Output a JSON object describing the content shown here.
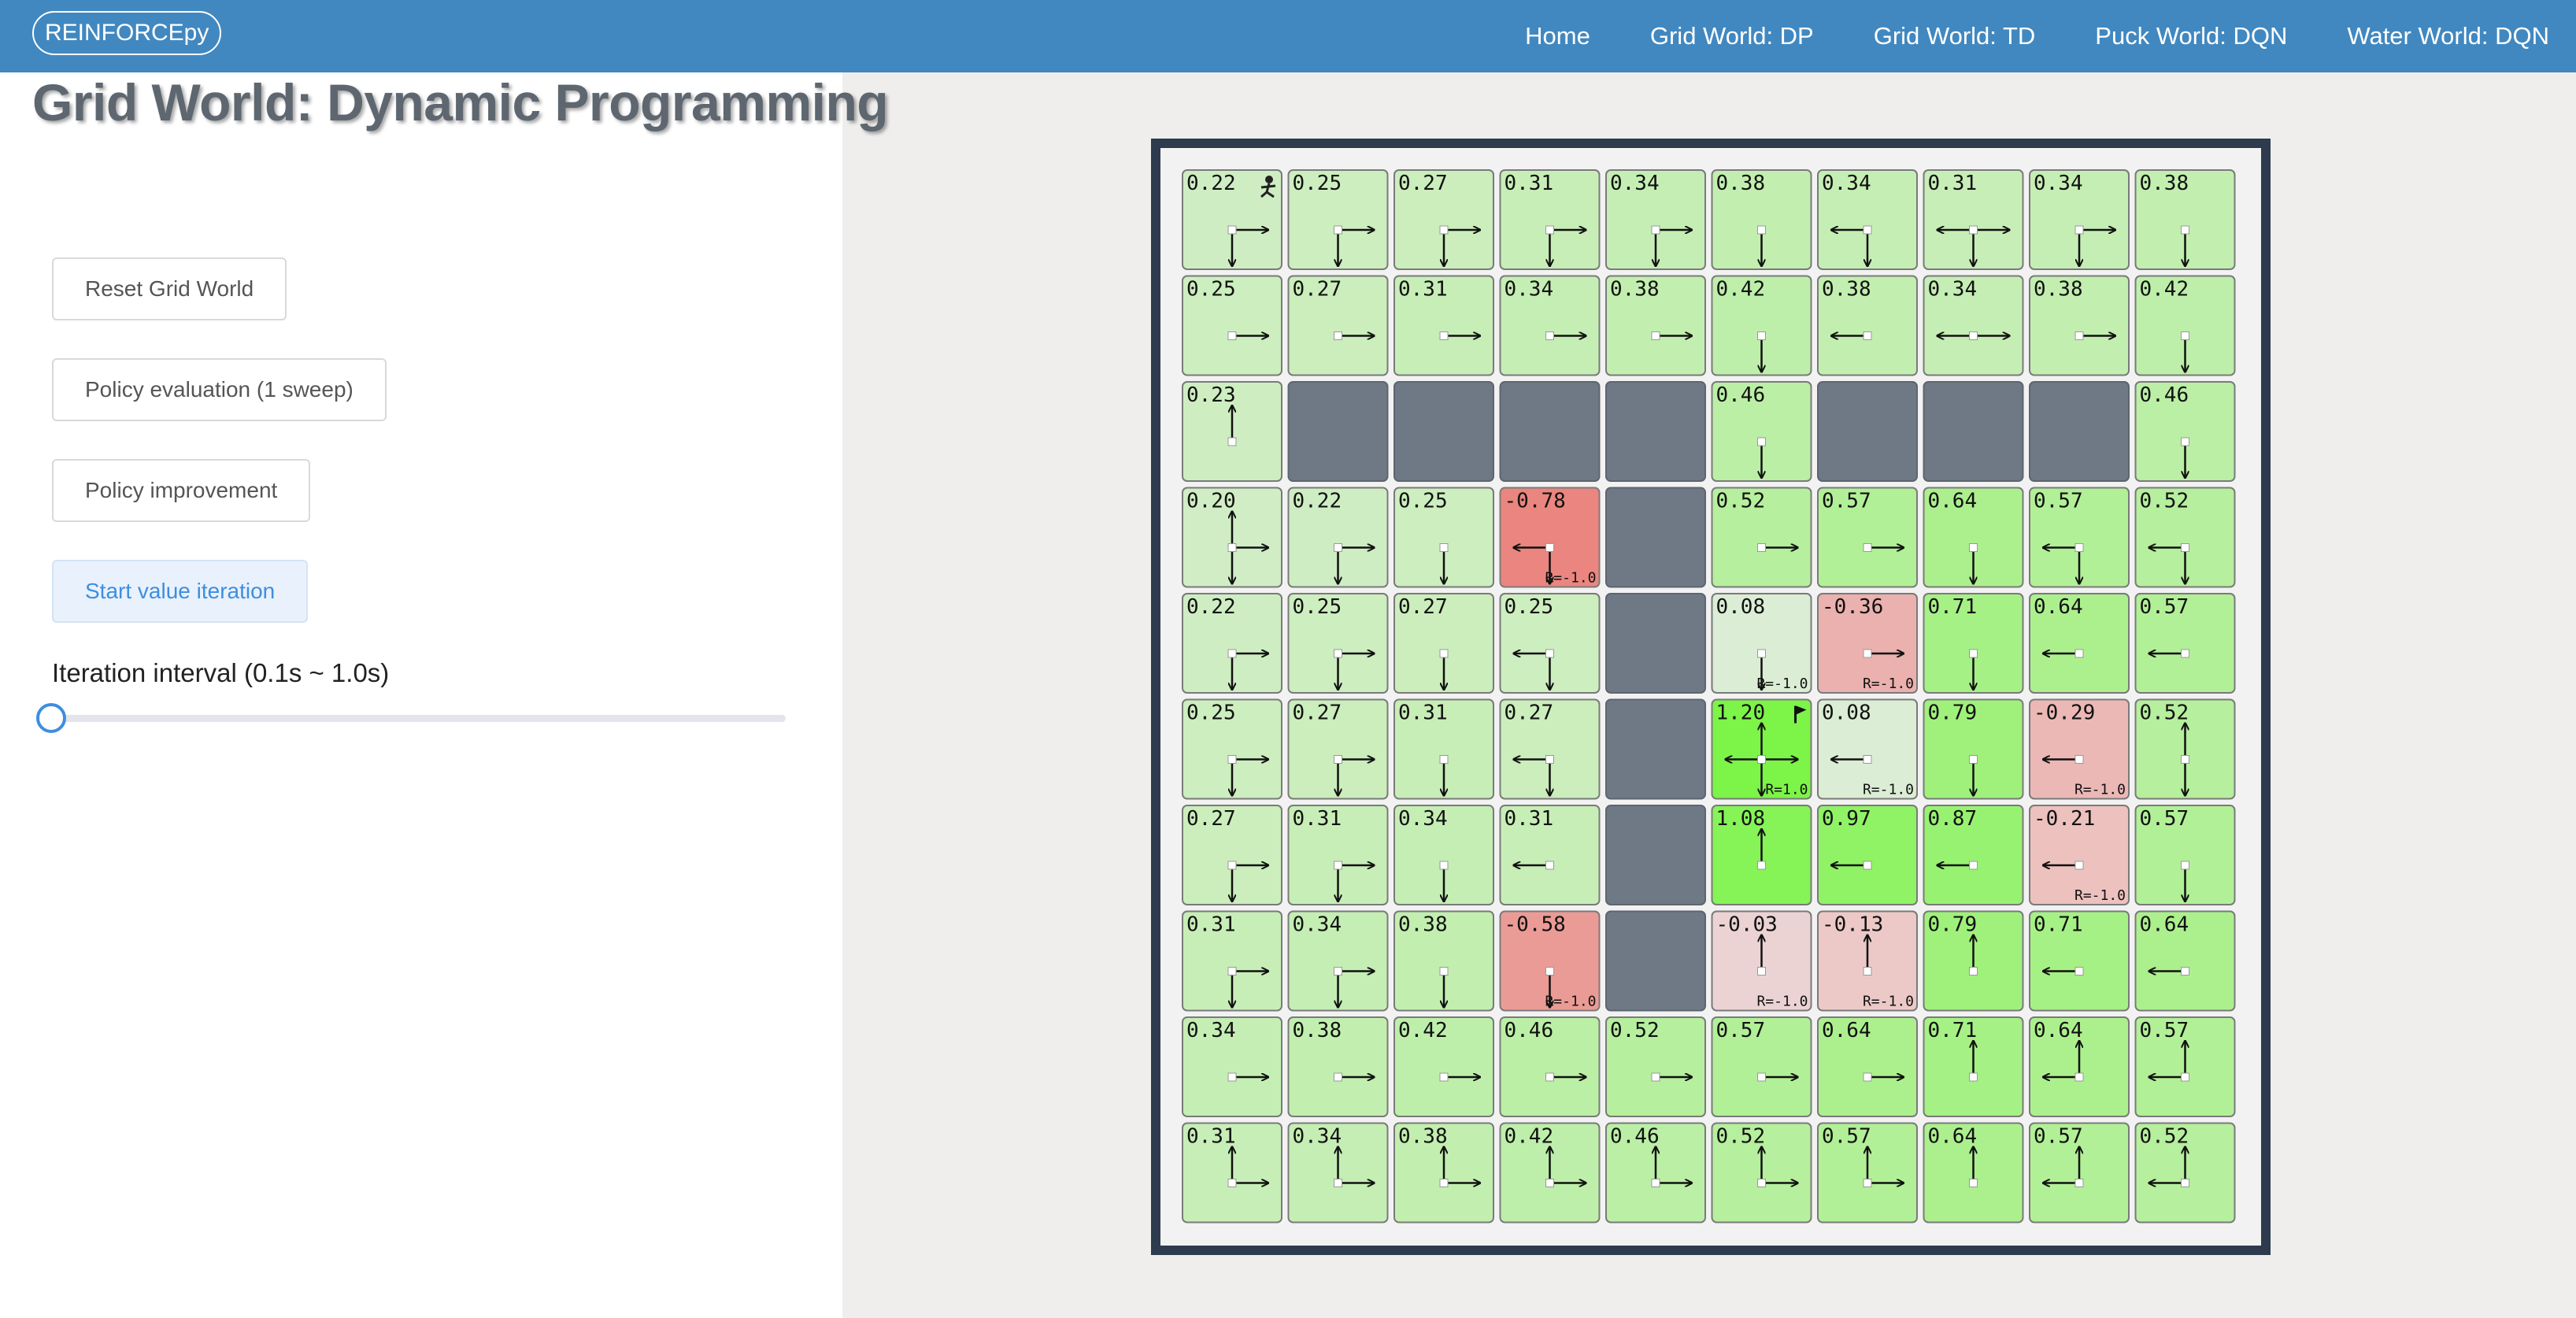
{
  "nav": {
    "brand": "REINFORCEpy",
    "links": [
      "Home",
      "Grid World: DP",
      "Grid World: TD",
      "Puck World: DQN",
      "Water World: DQN"
    ]
  },
  "sidebar": {
    "title": "Grid World: Dynamic Programming",
    "buttons": {
      "reset": "Reset Grid World",
      "policy_eval": "Policy evaluation (1 sweep)",
      "policy_improve": "Policy improvement",
      "value_iter": "Start value iteration"
    },
    "interval_label": "Iteration interval (0.1s ~ 1.0s)",
    "interval_value_fraction": 0.0
  },
  "colors": {
    "navbar": "#4188c0",
    "wall": "#6f7986",
    "frame": "#2e3a4d",
    "accent": "#3d8ee0"
  },
  "grid": {
    "rows": 10,
    "cols": 10,
    "cells": [
      [
        {
          "v": "0.22",
          "d": "RD",
          "icon": "walker-icon"
        },
        {
          "v": "0.25",
          "d": "RD"
        },
        {
          "v": "0.27",
          "d": "RD"
        },
        {
          "v": "0.31",
          "d": "RD"
        },
        {
          "v": "0.34",
          "d": "RD"
        },
        {
          "v": "0.38",
          "d": "D"
        },
        {
          "v": "0.34",
          "d": "LD"
        },
        {
          "v": "0.31",
          "d": "LRD"
        },
        {
          "v": "0.34",
          "d": "RD"
        },
        {
          "v": "0.38",
          "d": "D"
        }
      ],
      [
        {
          "v": "0.25",
          "d": "R"
        },
        {
          "v": "0.27",
          "d": "R"
        },
        {
          "v": "0.31",
          "d": "R"
        },
        {
          "v": "0.34",
          "d": "R"
        },
        {
          "v": "0.38",
          "d": "R"
        },
        {
          "v": "0.42",
          "d": "D"
        },
        {
          "v": "0.38",
          "d": "L"
        },
        {
          "v": "0.34",
          "d": "LR"
        },
        {
          "v": "0.38",
          "d": "R"
        },
        {
          "v": "0.42",
          "d": "D"
        }
      ],
      [
        {
          "v": "0.23",
          "d": "U"
        },
        {
          "w": true
        },
        {
          "w": true
        },
        {
          "w": true
        },
        {
          "w": true
        },
        {
          "v": "0.46",
          "d": "D"
        },
        {
          "w": true
        },
        {
          "w": true
        },
        {
          "w": true
        },
        {
          "v": "0.46",
          "d": "D"
        }
      ],
      [
        {
          "v": "0.20",
          "d": "URD"
        },
        {
          "v": "0.22",
          "d": "RD"
        },
        {
          "v": "0.25",
          "d": "D"
        },
        {
          "v": "-0.78",
          "d": "LD",
          "r": "R=-1.0"
        },
        {
          "w": true
        },
        {
          "v": "0.52",
          "d": "R"
        },
        {
          "v": "0.57",
          "d": "R"
        },
        {
          "v": "0.64",
          "d": "D"
        },
        {
          "v": "0.57",
          "d": "LD"
        },
        {
          "v": "0.52",
          "d": "LD"
        }
      ],
      [
        {
          "v": "0.22",
          "d": "RD"
        },
        {
          "v": "0.25",
          "d": "RD"
        },
        {
          "v": "0.27",
          "d": "D"
        },
        {
          "v": "0.25",
          "d": "LD"
        },
        {
          "w": true
        },
        {
          "v": "0.08",
          "d": "D",
          "r": "R=-1.0"
        },
        {
          "v": "-0.36",
          "d": "R",
          "r": "R=-1.0"
        },
        {
          "v": "0.71",
          "d": "D"
        },
        {
          "v": "0.64",
          "d": "L"
        },
        {
          "v": "0.57",
          "d": "L"
        }
      ],
      [
        {
          "v": "0.25",
          "d": "RD"
        },
        {
          "v": "0.27",
          "d": "RD"
        },
        {
          "v": "0.31",
          "d": "D"
        },
        {
          "v": "0.27",
          "d": "LD"
        },
        {
          "w": true
        },
        {
          "v": "1.20",
          "d": "ULRD",
          "r": "R=1.0",
          "icon": "flag-icon"
        },
        {
          "v": "0.08",
          "d": "L",
          "r": "R=-1.0"
        },
        {
          "v": "0.79",
          "d": "D"
        },
        {
          "v": "-0.29",
          "d": "L",
          "r": "R=-1.0"
        },
        {
          "v": "0.52",
          "d": "UD"
        }
      ],
      [
        {
          "v": "0.27",
          "d": "RD"
        },
        {
          "v": "0.31",
          "d": "RD"
        },
        {
          "v": "0.34",
          "d": "D"
        },
        {
          "v": "0.31",
          "d": "L"
        },
        {
          "w": true
        },
        {
          "v": "1.08",
          "d": "U"
        },
        {
          "v": "0.97",
          "d": "L"
        },
        {
          "v": "0.87",
          "d": "L"
        },
        {
          "v": "-0.21",
          "d": "L",
          "r": "R=-1.0"
        },
        {
          "v": "0.57",
          "d": "D"
        }
      ],
      [
        {
          "v": "0.31",
          "d": "RD"
        },
        {
          "v": "0.34",
          "d": "RD"
        },
        {
          "v": "0.38",
          "d": "D"
        },
        {
          "v": "-0.58",
          "d": "D",
          "r": "R=-1.0"
        },
        {
          "w": true
        },
        {
          "v": "-0.03",
          "d": "U",
          "r": "R=-1.0"
        },
        {
          "v": "-0.13",
          "d": "U",
          "r": "R=-1.0"
        },
        {
          "v": "0.79",
          "d": "U"
        },
        {
          "v": "0.71",
          "d": "L"
        },
        {
          "v": "0.64",
          "d": "L"
        }
      ],
      [
        {
          "v": "0.34",
          "d": "R"
        },
        {
          "v": "0.38",
          "d": "R"
        },
        {
          "v": "0.42",
          "d": "R"
        },
        {
          "v": "0.46",
          "d": "R"
        },
        {
          "v": "0.52",
          "d": "R"
        },
        {
          "v": "0.57",
          "d": "R"
        },
        {
          "v": "0.64",
          "d": "R"
        },
        {
          "v": "0.71",
          "d": "U"
        },
        {
          "v": "0.64",
          "d": "UL"
        },
        {
          "v": "0.57",
          "d": "UL"
        }
      ],
      [
        {
          "v": "0.31",
          "d": "UR"
        },
        {
          "v": "0.34",
          "d": "UR"
        },
        {
          "v": "0.38",
          "d": "UR"
        },
        {
          "v": "0.42",
          "d": "UR"
        },
        {
          "v": "0.46",
          "d": "UR"
        },
        {
          "v": "0.52",
          "d": "UR"
        },
        {
          "v": "0.57",
          "d": "UR"
        },
        {
          "v": "0.64",
          "d": "U"
        },
        {
          "v": "0.57",
          "d": "UL"
        },
        {
          "v": "0.52",
          "d": "UL"
        }
      ]
    ]
  }
}
